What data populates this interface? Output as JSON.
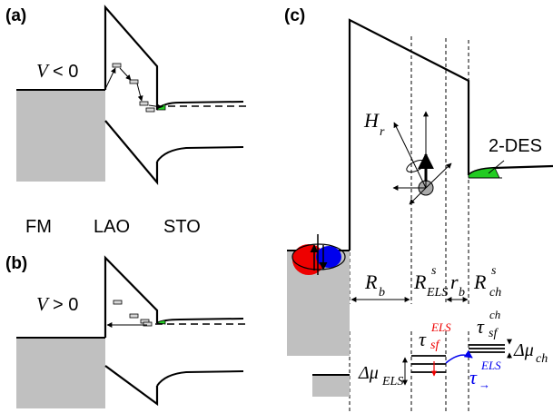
{
  "panels": {
    "a": {
      "label": "(a)",
      "bias": {
        "var": "V",
        "rel": "< 0"
      }
    },
    "b": {
      "label": "(b)",
      "bias": {
        "var": "V",
        "rel": "> 0"
      }
    },
    "c": {
      "label": "(c)"
    }
  },
  "layers": {
    "fm": "FM",
    "lao": "LAO",
    "sto": "STO"
  },
  "colors": {
    "fm_gray": "#c0c0c0",
    "gas_green": "#22cc22",
    "spin_red": "#ee0000",
    "spin_blue": "#0000ee"
  },
  "labels": {
    "h_main": "H",
    "h_sub": "r",
    "des": "2-DES",
    "rb_main": "R",
    "rb_sub": "b",
    "rels_main": "R",
    "rels_sup": "s",
    "rels_sub": "ELS",
    "rsmall_main": "r",
    "rsmall_sub": "b",
    "rch_main": "R",
    "rch_sup": "s",
    "rch_sub": "ch",
    "dmu_els_main": "Δμ",
    "dmu_els_sub": "ELS",
    "dmu_ch_main": "Δμ",
    "dmu_ch_sub": "ch",
    "tau_els_main": "τ",
    "tau_els_sup": "ELS",
    "tau_els_sub": "sf",
    "tau_ch_main": "τ",
    "tau_ch_sup": "ch",
    "tau_ch_sub": "sf",
    "tau_arrow_main": "τ",
    "tau_arrow_sup": "ELS",
    "tau_arrow_sub": "→"
  }
}
